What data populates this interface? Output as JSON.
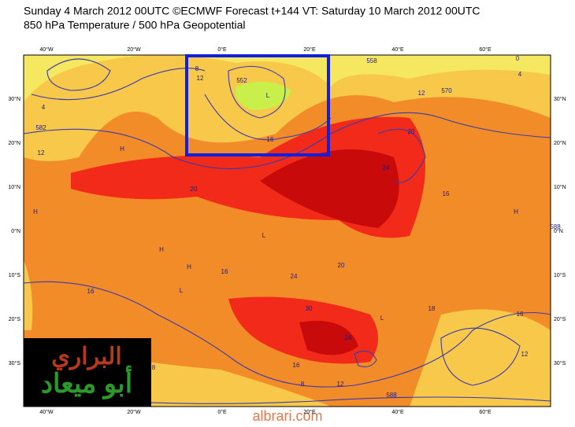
{
  "header": {
    "line1": "Sunday 4 March 2012 00UTC ©ECMWF Forecast t+144 VT: Saturday 10 March 2012 00UTC",
    "line2": "850 hPa Temperature / 500 hPa Geopotential"
  },
  "lon_labels": [
    "40°W",
    "20°W",
    "0°E",
    "20°E",
    "40°E",
    "60°E"
  ],
  "lat_labels": [
    "30°N",
    "20°N",
    "10°N",
    "0°N",
    "10°S",
    "20°S",
    "30°S"
  ],
  "contour_labels": [
    "0",
    "4",
    "558",
    "12",
    "570",
    "8",
    "12",
    "552",
    "L",
    "16",
    "20",
    "20",
    "24",
    "16",
    "588",
    "16",
    "24",
    "20",
    "30",
    "24",
    "16",
    "8",
    "12",
    "588",
    "12",
    "16",
    "18",
    "16",
    "8",
    "4",
    "582",
    "12",
    "H",
    "H",
    "H",
    "L",
    "L",
    "H",
    "L",
    "H"
  ],
  "logo": {
    "top": "البراري",
    "bottom": "أبو ميعاد"
  },
  "watermark": "albrari.com"
}
